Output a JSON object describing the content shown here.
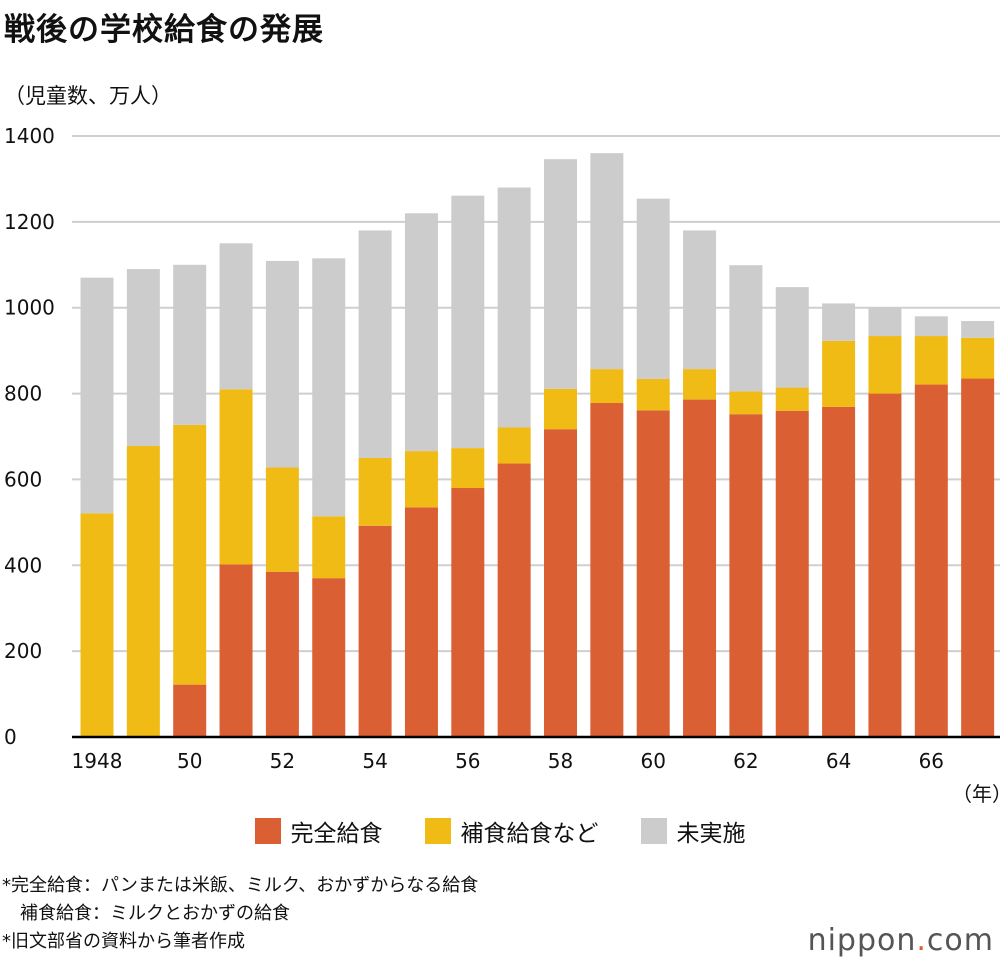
{
  "chart_data": {
    "type": "bar",
    "stacked": true,
    "title": "戦後の学校給食の発展",
    "ylabel": "（児童数、万人）",
    "xlabel": "（年）",
    "ylim": [
      0,
      1400
    ],
    "yticks": [
      0,
      200,
      400,
      600,
      800,
      1000,
      1200,
      1400
    ],
    "grid": true,
    "legend_position": "bottom",
    "categories": [
      "1948",
      "1949",
      "1950",
      "1951",
      "1952",
      "1953",
      "1954",
      "1955",
      "1956",
      "1957",
      "1958",
      "1959",
      "1960",
      "1961",
      "1962",
      "1963",
      "1964",
      "1965",
      "1966",
      "1967"
    ],
    "tick_labels": [
      "1948",
      "",
      "50",
      "",
      "52",
      "",
      "54",
      "",
      "56",
      "",
      "58",
      "",
      "60",
      "",
      "62",
      "",
      "64",
      "",
      "66",
      ""
    ],
    "series": [
      {
        "name": "完全給食",
        "color": "#da5f33",
        "values": [
          0,
          0,
          122,
          402,
          385,
          370,
          492,
          535,
          580,
          637,
          717,
          778,
          761,
          786,
          752,
          760,
          769,
          800,
          821,
          835
        ]
      },
      {
        "name": "補食給食など",
        "color": "#f0bb15",
        "values": [
          521,
          678,
          605,
          408,
          243,
          144,
          158,
          131,
          93,
          84,
          94,
          79,
          73,
          71,
          53,
          54,
          154,
          134,
          113,
          95
        ]
      },
      {
        "name": "未実施",
        "color": "#cccccc",
        "values": [
          549,
          412,
          373,
          340,
          481,
          601,
          530,
          554,
          588,
          559,
          535,
          503,
          420,
          323,
          294,
          234,
          87,
          66,
          46,
          39
        ]
      }
    ]
  },
  "notes": [
    "*完全給食：パンまたは米飯、ミルク、おかずからなる給食",
    "　補食給食：ミルクとおかずの給食",
    "*旧文部省の資料から筆者作成"
  ],
  "logo": {
    "text_main": "nippon",
    "text_dot": ".",
    "text_tail": "com"
  }
}
